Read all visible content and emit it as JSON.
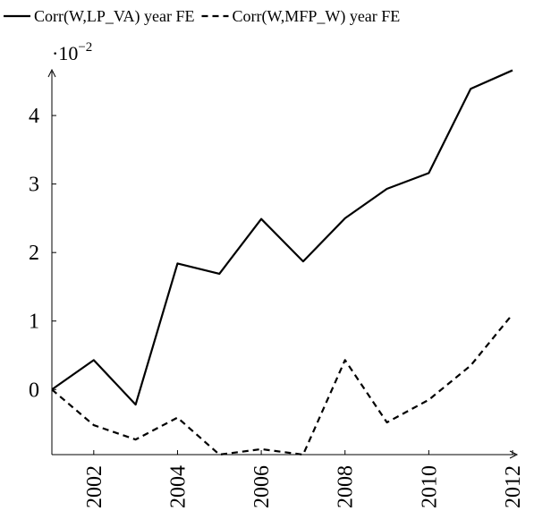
{
  "chart_data": {
    "type": "line",
    "x": [
      2001,
      2002,
      2003,
      2004,
      2005,
      2006,
      2007,
      2008,
      2009,
      2010,
      2011,
      2012
    ],
    "series": [
      {
        "name": "Corr(W,LP_VA) year FE",
        "color": "#000000",
        "dash": "solid",
        "values": [
          0,
          0.43,
          -0.22,
          1.84,
          1.69,
          2.49,
          1.87,
          2.5,
          2.93,
          3.16,
          4.39,
          4.66
        ]
      },
      {
        "name": "Corr(W,MFP_W) year FE",
        "color": "#000000",
        "dash": "dashed",
        "values": [
          0,
          -0.52,
          -0.73,
          -0.41,
          -0.95,
          -0.87,
          -0.95,
          0.43,
          -0.48,
          -0.15,
          0.35,
          1.1
        ]
      }
    ],
    "xlim": [
      2001,
      2012
    ],
    "xticks": [
      2002,
      2004,
      2006,
      2008,
      2010,
      2012
    ],
    "ylim": [
      -0.95,
      4.7
    ],
    "yticks": [
      0,
      1,
      2,
      3,
      4
    ],
    "y_scale_label": {
      "base": "·10",
      "exponent": "−2"
    },
    "legend": "top",
    "grid": false
  }
}
